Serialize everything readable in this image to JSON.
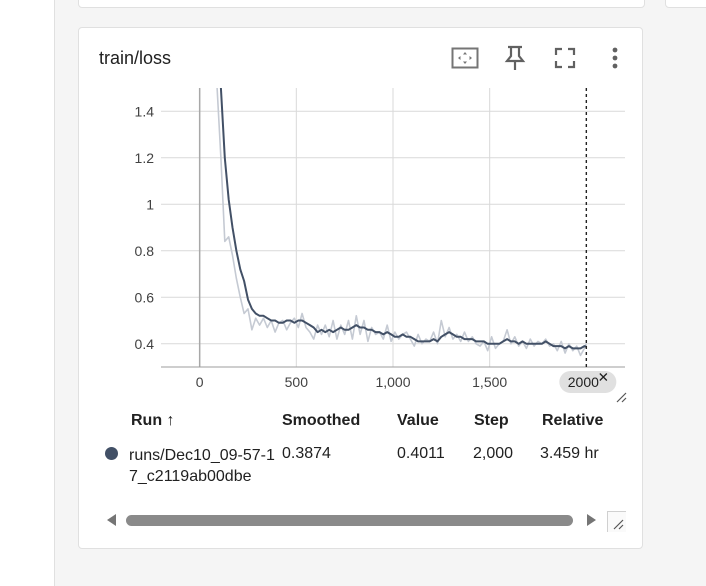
{
  "card": {
    "title": "train/loss",
    "toolbar": {
      "fit_icon": "fit-domain-icon",
      "pin_icon": "pin-icon",
      "fullscreen_icon": "fullscreen-icon",
      "more_icon": "more-vert-icon"
    }
  },
  "chart_data": {
    "type": "line",
    "title": "",
    "xlabel": "",
    "ylabel": "",
    "x_ticks": [
      "0",
      "500",
      "1,000",
      "1,500"
    ],
    "y_ticks": [
      "0.4",
      "0.6",
      "0.8",
      "1",
      "1.2",
      "1.4"
    ],
    "xlim": [
      -200,
      2200
    ],
    "ylim": [
      0.3,
      1.5
    ],
    "grid": true,
    "hover_step_label": "2000",
    "hover_step": 2000,
    "series": [
      {
        "role": "raw",
        "color": "#c5cad3",
        "points": [
          [
            90,
            1.5
          ],
          [
            110,
            1.2
          ],
          [
            130,
            0.84
          ],
          [
            150,
            0.86
          ],
          [
            170,
            0.78
          ],
          [
            190,
            0.68
          ],
          [
            210,
            0.6
          ],
          [
            230,
            0.53
          ],
          [
            250,
            0.55
          ],
          [
            270,
            0.46
          ],
          [
            290,
            0.51
          ],
          [
            310,
            0.48
          ],
          [
            330,
            0.51
          ],
          [
            350,
            0.47
          ],
          [
            370,
            0.5
          ],
          [
            390,
            0.45
          ],
          [
            410,
            0.49
          ],
          [
            430,
            0.5
          ],
          [
            450,
            0.46
          ],
          [
            470,
            0.49
          ],
          [
            490,
            0.51
          ],
          [
            510,
            0.47
          ],
          [
            530,
            0.53
          ],
          [
            550,
            0.47
          ],
          [
            570,
            0.45
          ],
          [
            590,
            0.42
          ],
          [
            610,
            0.48
          ],
          [
            630,
            0.44
          ],
          [
            650,
            0.48
          ],
          [
            670,
            0.43
          ],
          [
            690,
            0.5
          ],
          [
            710,
            0.42
          ],
          [
            730,
            0.48
          ],
          [
            750,
            0.44
          ],
          [
            770,
            0.5
          ],
          [
            790,
            0.42
          ],
          [
            810,
            0.52
          ],
          [
            830,
            0.44
          ],
          [
            850,
            0.5
          ],
          [
            870,
            0.41
          ],
          [
            890,
            0.47
          ],
          [
            910,
            0.44
          ],
          [
            930,
            0.45
          ],
          [
            950,
            0.42
          ],
          [
            970,
            0.48
          ],
          [
            990,
            0.41
          ],
          [
            1010,
            0.45
          ],
          [
            1030,
            0.42
          ],
          [
            1050,
            0.44
          ],
          [
            1070,
            0.45
          ],
          [
            1090,
            0.42
          ],
          [
            1110,
            0.39
          ],
          [
            1130,
            0.44
          ],
          [
            1150,
            0.4
          ],
          [
            1170,
            0.42
          ],
          [
            1190,
            0.41
          ],
          [
            1210,
            0.45
          ],
          [
            1230,
            0.4
          ],
          [
            1250,
            0.5
          ],
          [
            1270,
            0.43
          ],
          [
            1290,
            0.47
          ],
          [
            1310,
            0.42
          ],
          [
            1330,
            0.44
          ],
          [
            1350,
            0.41
          ],
          [
            1370,
            0.45
          ],
          [
            1390,
            0.41
          ],
          [
            1410,
            0.43
          ],
          [
            1430,
            0.4
          ],
          [
            1450,
            0.39
          ],
          [
            1470,
            0.41
          ],
          [
            1490,
            0.37
          ],
          [
            1510,
            0.43
          ],
          [
            1530,
            0.38
          ],
          [
            1550,
            0.4
          ],
          [
            1570,
            0.41
          ],
          [
            1590,
            0.46
          ],
          [
            1610,
            0.4
          ],
          [
            1630,
            0.43
          ],
          [
            1650,
            0.39
          ],
          [
            1670,
            0.41
          ],
          [
            1690,
            0.38
          ],
          [
            1710,
            0.42
          ],
          [
            1730,
            0.39
          ],
          [
            1750,
            0.41
          ],
          [
            1770,
            0.4
          ],
          [
            1790,
            0.42
          ],
          [
            1810,
            0.39
          ],
          [
            1830,
            0.4
          ],
          [
            1850,
            0.37
          ],
          [
            1870,
            0.41
          ],
          [
            1890,
            0.36
          ],
          [
            1910,
            0.4
          ],
          [
            1930,
            0.37
          ],
          [
            1950,
            0.39
          ],
          [
            1970,
            0.35
          ],
          [
            1990,
            0.38
          ],
          [
            2000,
            0.4011
          ]
        ]
      },
      {
        "role": "smoothed",
        "color": "#425066",
        "points": [
          [
            110,
            1.5
          ],
          [
            130,
            1.2
          ],
          [
            150,
            1.02
          ],
          [
            170,
            0.9
          ],
          [
            190,
            0.8
          ],
          [
            210,
            0.72
          ],
          [
            230,
            0.67
          ],
          [
            250,
            0.59
          ],
          [
            270,
            0.55
          ],
          [
            290,
            0.53
          ],
          [
            310,
            0.52
          ],
          [
            330,
            0.52
          ],
          [
            350,
            0.51
          ],
          [
            370,
            0.5
          ],
          [
            390,
            0.5
          ],
          [
            410,
            0.49
          ],
          [
            430,
            0.49
          ],
          [
            450,
            0.5
          ],
          [
            470,
            0.5
          ],
          [
            490,
            0.49
          ],
          [
            510,
            0.5
          ],
          [
            530,
            0.5
          ],
          [
            550,
            0.49
          ],
          [
            570,
            0.48
          ],
          [
            590,
            0.47
          ],
          [
            610,
            0.45
          ],
          [
            630,
            0.46
          ],
          [
            650,
            0.45
          ],
          [
            670,
            0.46
          ],
          [
            690,
            0.45
          ],
          [
            710,
            0.46
          ],
          [
            730,
            0.47
          ],
          [
            750,
            0.46
          ],
          [
            770,
            0.46
          ],
          [
            790,
            0.47
          ],
          [
            810,
            0.48
          ],
          [
            830,
            0.47
          ],
          [
            850,
            0.47
          ],
          [
            870,
            0.46
          ],
          [
            890,
            0.46
          ],
          [
            910,
            0.45
          ],
          [
            930,
            0.45
          ],
          [
            950,
            0.44
          ],
          [
            970,
            0.45
          ],
          [
            990,
            0.44
          ],
          [
            1010,
            0.43
          ],
          [
            1030,
            0.43
          ],
          [
            1050,
            0.44
          ],
          [
            1070,
            0.43
          ],
          [
            1090,
            0.43
          ],
          [
            1110,
            0.42
          ],
          [
            1130,
            0.41
          ],
          [
            1150,
            0.41
          ],
          [
            1170,
            0.41
          ],
          [
            1190,
            0.41
          ],
          [
            1210,
            0.42
          ],
          [
            1230,
            0.41
          ],
          [
            1250,
            0.43
          ],
          [
            1270,
            0.44
          ],
          [
            1290,
            0.45
          ],
          [
            1310,
            0.44
          ],
          [
            1330,
            0.43
          ],
          [
            1350,
            0.43
          ],
          [
            1370,
            0.42
          ],
          [
            1390,
            0.42
          ],
          [
            1410,
            0.42
          ],
          [
            1430,
            0.41
          ],
          [
            1450,
            0.41
          ],
          [
            1470,
            0.41
          ],
          [
            1490,
            0.4
          ],
          [
            1510,
            0.4
          ],
          [
            1530,
            0.4
          ],
          [
            1550,
            0.4
          ],
          [
            1570,
            0.41
          ],
          [
            1590,
            0.42
          ],
          [
            1610,
            0.41
          ],
          [
            1630,
            0.41
          ],
          [
            1650,
            0.4
          ],
          [
            1670,
            0.41
          ],
          [
            1690,
            0.4
          ],
          [
            1710,
            0.4
          ],
          [
            1730,
            0.4
          ],
          [
            1750,
            0.4
          ],
          [
            1770,
            0.4
          ],
          [
            1790,
            0.41
          ],
          [
            1810,
            0.4
          ],
          [
            1830,
            0.39
          ],
          [
            1850,
            0.39
          ],
          [
            1870,
            0.39
          ],
          [
            1890,
            0.38
          ],
          [
            1910,
            0.39
          ],
          [
            1930,
            0.38
          ],
          [
            1950,
            0.38
          ],
          [
            1970,
            0.38
          ],
          [
            1990,
            0.39
          ],
          [
            2000,
            0.3874
          ]
        ]
      }
    ]
  },
  "table": {
    "headers": {
      "run": "Run ↑",
      "smoothed": "Smoothed",
      "value": "Value",
      "step": "Step",
      "relative": "Relative"
    },
    "rows": [
      {
        "color": "#425066",
        "run": "runs/Dec10_09-57-17_c2119ab00dbe",
        "smoothed": "0.3874",
        "value": "0.4011",
        "step": "2,000",
        "relative": "3.459 hr"
      }
    ]
  },
  "colors": {
    "accent_run": "#425066",
    "raw_line": "#c5cad3",
    "grid": "#d9d9d9"
  }
}
